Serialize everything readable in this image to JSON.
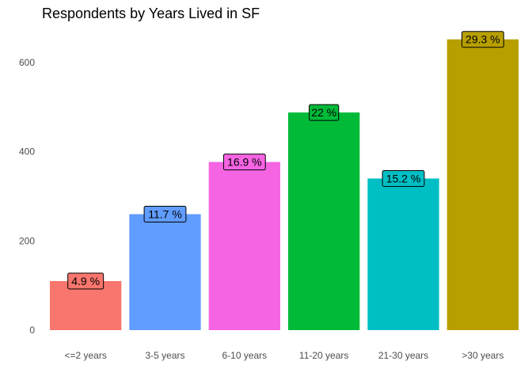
{
  "chart_data": {
    "type": "bar",
    "title": "Respondents by Years Lived in SF",
    "xlabel": "",
    "ylabel": "",
    "categories": [
      "<=2 years",
      "3-5 years",
      "6-10 years",
      "11-20 years",
      "21-30 years",
      ">30 years"
    ],
    "values": [
      110,
      260,
      377,
      488,
      340,
      652
    ],
    "labels": [
      "4.9 %",
      "11.7 %",
      "16.9 %",
      "22 %",
      "15.2 %",
      "29.3 %"
    ],
    "colors": [
      "#F8766D",
      "#619CFF",
      "#F564E3",
      "#00BA38",
      "#00BFC4",
      "#B79F00"
    ],
    "yticks": [
      0,
      200,
      400,
      600
    ],
    "ylim": [
      0,
      660
    ],
    "grid": false,
    "legend": "none"
  }
}
